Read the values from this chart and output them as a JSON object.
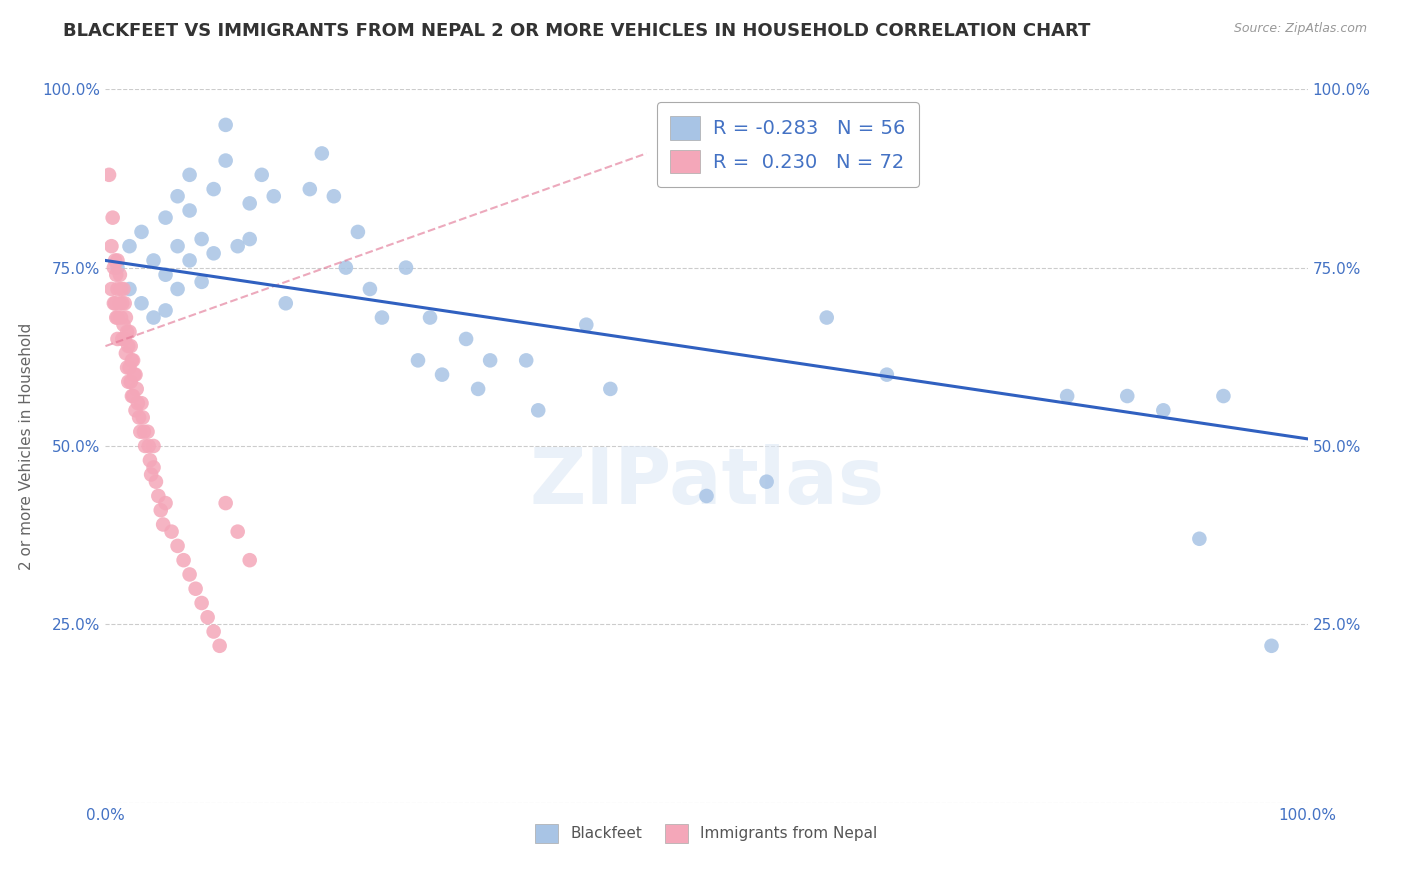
{
  "title": "BLACKFEET VS IMMIGRANTS FROM NEPAL 2 OR MORE VEHICLES IN HOUSEHOLD CORRELATION CHART",
  "source": "Source: ZipAtlas.com",
  "ylabel": "2 or more Vehicles in Household",
  "x_min": 0.0,
  "x_max": 1.0,
  "y_min": 0.0,
  "y_max": 1.0,
  "x_ticks": [
    0.0,
    0.1,
    0.2,
    0.3,
    0.4,
    0.5,
    0.6,
    0.7,
    0.8,
    0.9,
    1.0
  ],
  "y_ticks": [
    0.0,
    0.25,
    0.5,
    0.75,
    1.0
  ],
  "x_tick_labels": [
    "0.0%",
    "",
    "",
    "",
    "",
    "",
    "",
    "",
    "",
    "",
    "100.0%"
  ],
  "y_tick_labels": [
    "",
    "25.0%",
    "50.0%",
    "75.0%",
    "100.0%"
  ],
  "blue_R": -0.283,
  "blue_N": 56,
  "pink_R": 0.23,
  "pink_N": 72,
  "blue_color": "#a8c4e5",
  "pink_color": "#f4a7b9",
  "blue_line_color": "#3060c0",
  "pink_line_color": "#e07090",
  "legend_label_blue": "Blackfeet",
  "legend_label_pink": "Immigrants from Nepal",
  "blue_line_x0": 0.0,
  "blue_line_y0": 0.76,
  "blue_line_x1": 1.0,
  "blue_line_y1": 0.51,
  "pink_line_x0": 0.0,
  "pink_line_y0": 0.64,
  "pink_line_x1": 0.1,
  "pink_line_y1": 0.7,
  "blue_scatter_x": [
    0.01,
    0.02,
    0.02,
    0.03,
    0.03,
    0.04,
    0.04,
    0.05,
    0.05,
    0.05,
    0.06,
    0.06,
    0.06,
    0.07,
    0.07,
    0.07,
    0.08,
    0.08,
    0.09,
    0.09,
    0.1,
    0.1,
    0.11,
    0.12,
    0.12,
    0.13,
    0.14,
    0.15,
    0.17,
    0.18,
    0.19,
    0.2,
    0.21,
    0.22,
    0.23,
    0.25,
    0.26,
    0.27,
    0.28,
    0.3,
    0.31,
    0.32,
    0.35,
    0.36,
    0.4,
    0.42,
    0.5,
    0.55,
    0.6,
    0.65,
    0.8,
    0.85,
    0.88,
    0.91,
    0.93,
    0.97
  ],
  "blue_scatter_y": [
    0.75,
    0.78,
    0.72,
    0.8,
    0.7,
    0.76,
    0.68,
    0.82,
    0.74,
    0.69,
    0.85,
    0.78,
    0.72,
    0.88,
    0.83,
    0.76,
    0.79,
    0.73,
    0.86,
    0.77,
    0.95,
    0.9,
    0.78,
    0.84,
    0.79,
    0.88,
    0.85,
    0.7,
    0.86,
    0.91,
    0.85,
    0.75,
    0.8,
    0.72,
    0.68,
    0.75,
    0.62,
    0.68,
    0.6,
    0.65,
    0.58,
    0.62,
    0.62,
    0.55,
    0.67,
    0.58,
    0.43,
    0.45,
    0.68,
    0.6,
    0.57,
    0.57,
    0.55,
    0.37,
    0.57,
    0.22
  ],
  "pink_scatter_x": [
    0.003,
    0.005,
    0.005,
    0.006,
    0.007,
    0.007,
    0.008,
    0.008,
    0.009,
    0.009,
    0.01,
    0.01,
    0.01,
    0.01,
    0.012,
    0.012,
    0.013,
    0.013,
    0.014,
    0.014,
    0.015,
    0.015,
    0.016,
    0.016,
    0.017,
    0.017,
    0.018,
    0.018,
    0.019,
    0.019,
    0.02,
    0.02,
    0.021,
    0.021,
    0.022,
    0.022,
    0.023,
    0.023,
    0.024,
    0.025,
    0.025,
    0.026,
    0.027,
    0.028,
    0.029,
    0.03,
    0.031,
    0.032,
    0.033,
    0.035,
    0.036,
    0.037,
    0.038,
    0.04,
    0.04,
    0.042,
    0.044,
    0.046,
    0.048,
    0.05,
    0.055,
    0.06,
    0.065,
    0.07,
    0.075,
    0.08,
    0.085,
    0.09,
    0.095,
    0.1,
    0.11,
    0.12
  ],
  "pink_scatter_y": [
    0.88,
    0.78,
    0.72,
    0.82,
    0.75,
    0.7,
    0.76,
    0.7,
    0.74,
    0.68,
    0.76,
    0.72,
    0.68,
    0.65,
    0.74,
    0.7,
    0.72,
    0.68,
    0.7,
    0.65,
    0.72,
    0.67,
    0.7,
    0.65,
    0.68,
    0.63,
    0.66,
    0.61,
    0.64,
    0.59,
    0.66,
    0.61,
    0.64,
    0.59,
    0.62,
    0.57,
    0.62,
    0.57,
    0.6,
    0.6,
    0.55,
    0.58,
    0.56,
    0.54,
    0.52,
    0.56,
    0.54,
    0.52,
    0.5,
    0.52,
    0.5,
    0.48,
    0.46,
    0.5,
    0.47,
    0.45,
    0.43,
    0.41,
    0.39,
    0.42,
    0.38,
    0.36,
    0.34,
    0.32,
    0.3,
    0.28,
    0.26,
    0.24,
    0.22,
    0.42,
    0.38,
    0.34
  ]
}
